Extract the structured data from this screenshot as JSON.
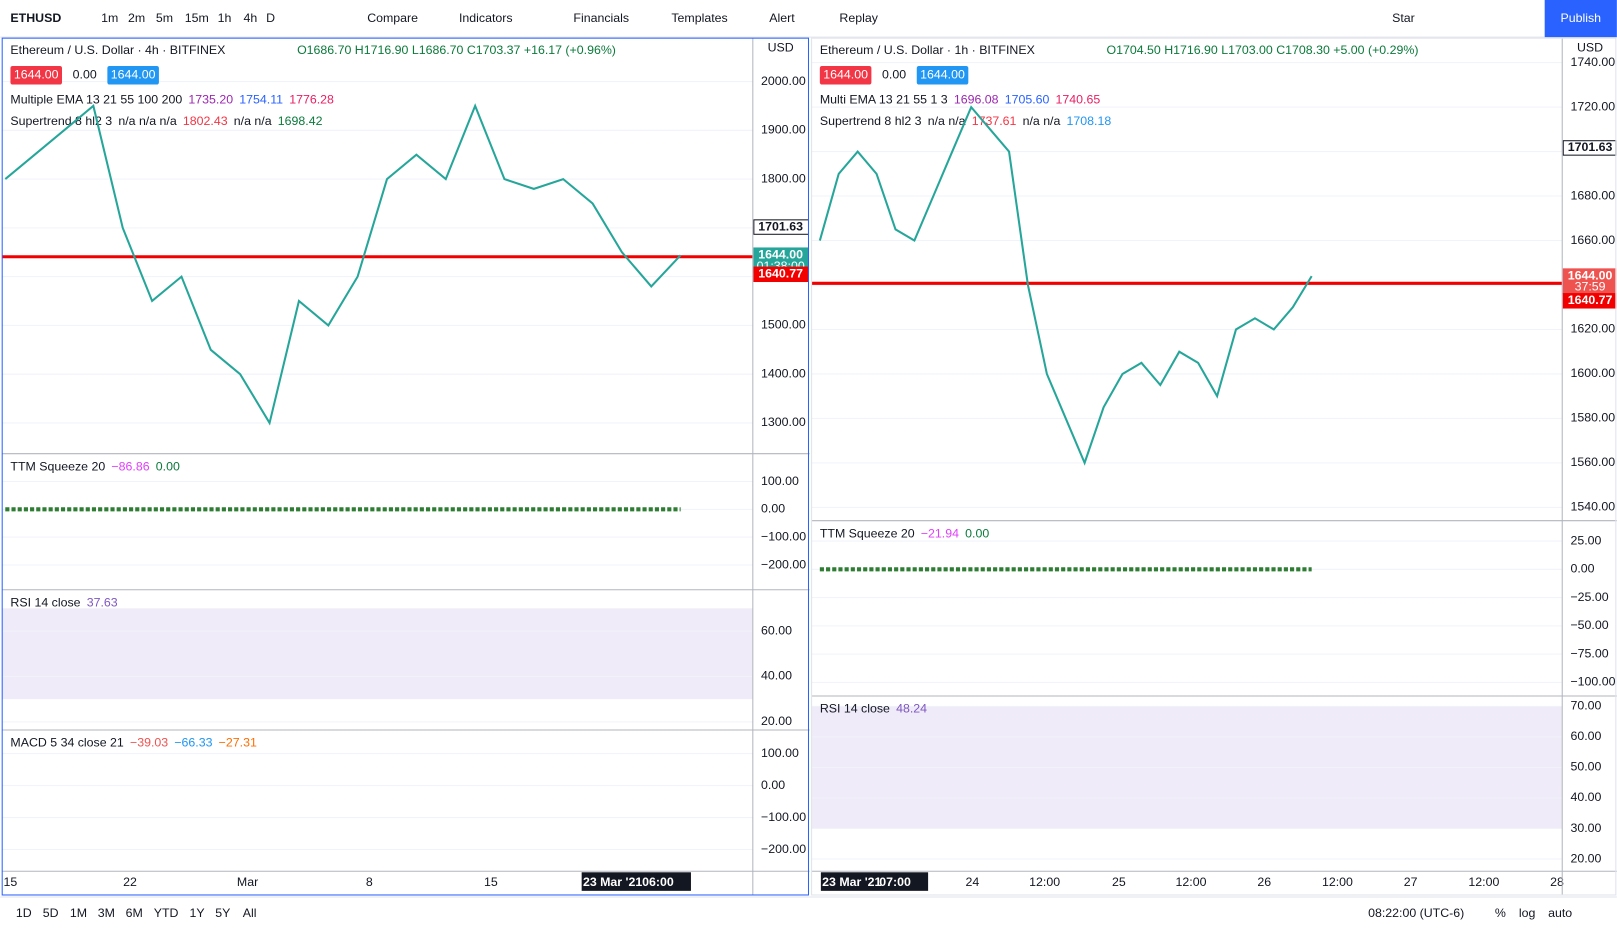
{
  "toolbar": {
    "symbol": "ETHUSD",
    "intervals": [
      "1m",
      "2m",
      "5m",
      "15m",
      "1h",
      "4h",
      "D"
    ],
    "buttons": [
      "Compare",
      "Indicators",
      "Financials",
      "Templates",
      "Alert",
      "Replay"
    ],
    "star": "Star",
    "publish": "Publish"
  },
  "left_chart": {
    "main": {
      "title": "Ethereum / U.S. Dollar · 4h · BITFINEX",
      "ohlc": "O1686.70 H1716.90 L1686.70 C1703.37 +16.17 (+0.96%)",
      "badges": [
        "1644.00",
        "0.00",
        "1644.00"
      ],
      "indicators": [
        {
          "name": "Multiple EMA 13 21 55 100 200",
          "values": [
            {
              "text": "1735.20",
              "color": "#9c27b0"
            },
            {
              "text": "1754.11",
              "color": "#2962ff"
            },
            {
              "text": "1776.28",
              "color": "#e91e63"
            }
          ]
        },
        {
          "name": "Supertrend 8 hl2 3",
          "values": [
            {
              "text": "n/a n/a n/a",
              "color": "#131722"
            },
            {
              "text": "1802.43",
              "color": "#f23645"
            },
            {
              "text": "n/a n/a",
              "color": "#131722"
            },
            {
              "text": "1698.42",
              "color": "#0b7a3b"
            }
          ]
        }
      ],
      "currency": "USD",
      "ylim": [
        1237,
        2089
      ],
      "ticks": [
        {
          "value": 2000,
          "label": "2000.00"
        },
        {
          "value": 1900,
          "label": "1900.00"
        },
        {
          "value": 1800,
          "label": "1800.00"
        },
        {
          "value": 1700,
          "label": "1700.00"
        },
        {
          "value": 1600,
          "label": "1600.00"
        },
        {
          "value": 1500,
          "label": "1500.00"
        },
        {
          "value": 1400,
          "label": "1400.00"
        },
        {
          "value": 1300,
          "label": "1300.00"
        }
      ],
      "close": {
        "color": "#26a69a",
        "values": [
          1800,
          1850,
          1900,
          1950,
          1700,
          1550,
          1600,
          1450,
          1400,
          1300,
          1550,
          1500,
          1600,
          1800,
          1850,
          1800,
          1950,
          1800,
          1780,
          1800,
          1750,
          1650,
          1580,
          1644
        ]
      },
      "level": {
        "value": 1640.77,
        "color": "#f20000"
      },
      "axis_labels": [
        {
          "value": 1701.63,
          "label": "1701.63",
          "color": "#131722"
        },
        {
          "value": 1644,
          "label": "1644.00",
          "sub": "01:38:00",
          "color": "#26a69a"
        },
        {
          "value": 1640.77,
          "label": "1640.77",
          "color": "#f20000"
        }
      ]
    },
    "ttm": {
      "name": "TTM Squeeze 20",
      "values": [
        {
          "text": "−86.86",
          "color": "#e040fb"
        },
        {
          "text": "0.00",
          "color": "#0b7a3b"
        }
      ],
      "ylim": [
        -289,
        200
      ],
      "ticks": [
        {
          "value": 100,
          "label": "100.00"
        },
        {
          "value": 0,
          "label": "0.00"
        },
        {
          "value": -100,
          "label": "−100.00"
        },
        {
          "value": -200,
          "label": "−200.00"
        }
      ]
    },
    "rsi": {
      "name": "RSI 14 close",
      "values": [
        {
          "text": "37.63",
          "color": "#7e57c2"
        }
      ],
      "ylim": [
        16.4,
        78.2
      ],
      "band": [
        30,
        70
      ],
      "ticks": [
        {
          "value": 60,
          "label": "60.00"
        },
        {
          "value": 40,
          "label": "40.00"
        },
        {
          "value": 20,
          "label": "20.00"
        }
      ]
    },
    "macd": {
      "name": "MACD 5 34 close 21",
      "values": [
        {
          "text": "−39.03",
          "color": "#ef5350"
        },
        {
          "text": "−66.33",
          "color": "#2196f3"
        },
        {
          "text": "−27.31",
          "color": "#ff6d00"
        }
      ],
      "ylim": [
        -268,
        174
      ],
      "ticks": [
        {
          "value": 100,
          "label": "100.00"
        },
        {
          "value": 0,
          "label": "0.00"
        },
        {
          "value": -100,
          "label": "−100.00"
        },
        {
          "value": -200,
          "label": "−200.00"
        }
      ]
    },
    "time_axis": {
      "labels": [
        "15",
        "22",
        "Mar",
        "8",
        "15"
      ],
      "cursor": [
        "23 Mar '21",
        "06:00"
      ]
    }
  },
  "right_chart": {
    "main": {
      "title": "Ethereum / U.S. Dollar · 1h · BITFINEX",
      "ohlc": "O1704.50 H1716.90 L1703.00 C1708.30 +5.00 (+0.29%)",
      "badges": [
        "1644.00",
        "0.00",
        "1644.00"
      ],
      "indicators": [
        {
          "name": "Multi EMA 13 21 55 1 3",
          "values": [
            {
              "text": "1696.08",
              "color": "#9c27b0"
            },
            {
              "text": "1705.60",
              "color": "#2962ff"
            },
            {
              "text": "1740.65",
              "color": "#e91e63"
            }
          ]
        },
        {
          "name": "Supertrend 8 hl2 3",
          "values": [
            {
              "text": "n/a n/a",
              "color": "#131722"
            },
            {
              "text": "1737.61",
              "color": "#f23645"
            },
            {
              "text": "n/a n/a",
              "color": "#131722"
            },
            {
              "text": "1708.18",
              "color": "#2196f3"
            }
          ]
        }
      ],
      "currency": "USD",
      "ylim": [
        1534,
        1751
      ],
      "ticks": [
        {
          "value": 1740,
          "label": "1740.00"
        },
        {
          "value": 1720,
          "label": "1720.00"
        },
        {
          "value": 1700,
          "label": "1700.00"
        },
        {
          "value": 1680,
          "label": "1680.00"
        },
        {
          "value": 1660,
          "label": "1660.00"
        },
        {
          "value": 1640,
          "label": "1640.00"
        },
        {
          "value": 1620,
          "label": "1620.00"
        },
        {
          "value": 1600,
          "label": "1600.00"
        },
        {
          "value": 1580,
          "label": "1580.00"
        },
        {
          "value": 1560,
          "label": "1560.00"
        },
        {
          "value": 1540,
          "label": "1540.00"
        }
      ],
      "close": {
        "color": "#26a69a",
        "values": [
          1660,
          1690,
          1700,
          1690,
          1665,
          1660,
          1680,
          1700,
          1720,
          1710,
          1700,
          1640,
          1600,
          1580,
          1560,
          1585,
          1600,
          1605,
          1595,
          1610,
          1605,
          1590,
          1620,
          1625,
          1620,
          1630,
          1644
        ]
      },
      "level": {
        "value": 1640.77,
        "color": "#f20000"
      },
      "axis_labels": [
        {
          "value": 1701.63,
          "label": "1701.63",
          "color": "#131722"
        },
        {
          "value": 1644,
          "label": "1644.00",
          "sub": "37:59",
          "color": "#ef5350"
        },
        {
          "value": 1640.77,
          "label": "1640.77",
          "color": "#f20000"
        }
      ]
    },
    "ttm": {
      "name": "TTM Squeeze 20",
      "values": [
        {
          "text": "−21.94",
          "color": "#e040fb"
        },
        {
          "text": "0.00",
          "color": "#0b7a3b"
        }
      ],
      "ylim": [
        -112,
        43
      ],
      "ticks": [
        {
          "value": 25,
          "label": "25.00"
        },
        {
          "value": 0,
          "label": "0.00"
        },
        {
          "value": -25,
          "label": "−25.00"
        },
        {
          "value": -50,
          "label": "−50.00"
        },
        {
          "value": -75,
          "label": "−75.00"
        },
        {
          "value": -100,
          "label": "−100.00"
        }
      ]
    },
    "rsi": {
      "name": "RSI 14 close",
      "values": [
        {
          "text": "48.24",
          "color": "#7e57c2"
        }
      ],
      "ylim": [
        16,
        73.4
      ],
      "band": [
        30,
        70
      ],
      "ticks": [
        {
          "value": 70,
          "label": "70.00"
        },
        {
          "value": 60,
          "label": "60.00"
        },
        {
          "value": 50,
          "label": "50.00"
        },
        {
          "value": 40,
          "label": "40.00"
        },
        {
          "value": 30,
          "label": "30.00"
        },
        {
          "value": 20,
          "label": "20.00"
        }
      ]
    },
    "time_axis": {
      "labels": [
        "24",
        "12:00",
        "25",
        "12:00",
        "26",
        "12:00",
        "27",
        "12:00",
        "28"
      ],
      "cursor": [
        "23 Mar '21",
        "07:00"
      ]
    }
  },
  "bottom_bar": {
    "ranges": [
      "1D",
      "5D",
      "1M",
      "3M",
      "6M",
      "YTD",
      "1Y",
      "5Y",
      "All"
    ],
    "clock": "08:22:00 (UTC-6)",
    "options": [
      "%",
      "log",
      "auto"
    ]
  }
}
